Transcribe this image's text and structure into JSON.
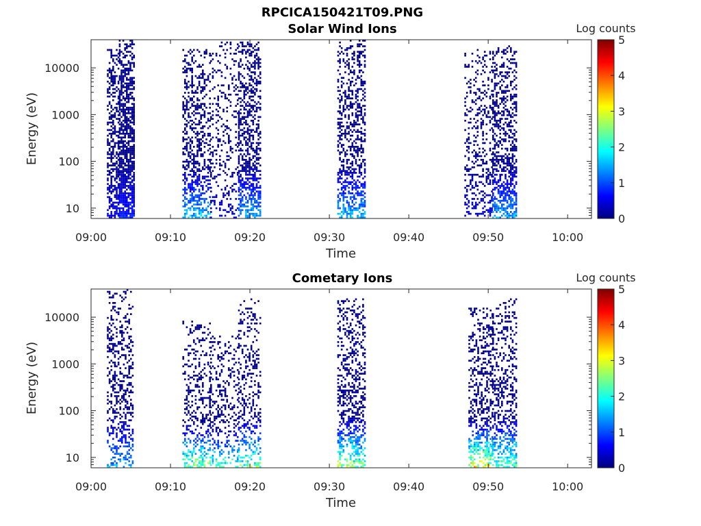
{
  "figure": {
    "title": "RPCICA150421T09.PNG"
  },
  "colors": {
    "background": "#ffffff",
    "axis": "#262626",
    "colormap": [
      "#00007f",
      "#0000ff",
      "#007fff",
      "#00ffff",
      "#7fff7f",
      "#ffff00",
      "#ff7f00",
      "#ff0000",
      "#7f0000"
    ]
  },
  "chart_data": [
    {
      "type": "heatmap",
      "title": "Solar Wind Ions",
      "xlabel": "Time",
      "ylabel": "Energy (eV)",
      "xticks": [
        "09:00",
        "09:10",
        "09:20",
        "09:30",
        "09:40",
        "09:50",
        "10:00"
      ],
      "xlim_minutes": [
        0,
        63
      ],
      "yticks": [
        "10",
        "100",
        "1000",
        "10000"
      ],
      "ylim_eV": [
        6,
        40000
      ],
      "yscale": "log",
      "colorbar": {
        "label": "Log counts",
        "ticks": [
          "0",
          "1",
          "2",
          "3",
          "4",
          "5"
        ],
        "range": [
          0,
          5
        ]
      },
      "events": [
        {
          "start_min": 2.0,
          "end_min": 3.5,
          "emax_eV": 25000,
          "peak_log_counts": 0.6,
          "density": 0.6
        },
        {
          "start_min": 3.5,
          "end_min": 5.3,
          "emax_eV": 40000,
          "peak_log_counts": 0.9,
          "density": 0.9
        },
        {
          "start_min": 11.5,
          "end_min": 15.0,
          "emax_eV": 25000,
          "peak_log_counts": 2.0,
          "density": 0.5
        },
        {
          "start_min": 15.0,
          "end_min": 18.5,
          "emax_eV": 35000,
          "peak_log_counts": 0.5,
          "density": 0.25
        },
        {
          "start_min": 18.5,
          "end_min": 21.2,
          "emax_eV": 35000,
          "peak_log_counts": 1.8,
          "density": 0.6
        },
        {
          "start_min": 31.0,
          "end_min": 34.5,
          "emax_eV": 40000,
          "peak_log_counts": 1.9,
          "density": 0.55
        },
        {
          "start_min": 47.0,
          "end_min": 50.5,
          "emax_eV": 25000,
          "peak_log_counts": 0.5,
          "density": 0.3
        },
        {
          "start_min": 50.5,
          "end_min": 53.5,
          "emax_eV": 30000,
          "peak_log_counts": 1.8,
          "density": 0.6
        }
      ]
    },
    {
      "type": "heatmap",
      "title": "Cometary Ions",
      "xlabel": "Time",
      "ylabel": "Energy (eV)",
      "xticks": [
        "09:00",
        "09:10",
        "09:20",
        "09:30",
        "09:40",
        "09:50",
        "10:00"
      ],
      "xlim_minutes": [
        0,
        63
      ],
      "yticks": [
        "10",
        "100",
        "1000",
        "10000"
      ],
      "ylim_eV": [
        6,
        40000
      ],
      "yscale": "log",
      "colorbar": {
        "label": "Log counts",
        "ticks": [
          "0",
          "1",
          "2",
          "3",
          "4",
          "5"
        ],
        "range": [
          0,
          5
        ]
      },
      "events": [
        {
          "start_min": 2.0,
          "end_min": 5.3,
          "emax_eV": 40000,
          "peak_log_counts": 1.8,
          "density": 0.4
        },
        {
          "start_min": 11.5,
          "end_min": 15.0,
          "emax_eV": 8000,
          "peak_log_counts": 3.2,
          "density": 0.4
        },
        {
          "start_min": 15.0,
          "end_min": 18.5,
          "emax_eV": 4000,
          "peak_log_counts": 2.8,
          "density": 0.35
        },
        {
          "start_min": 18.5,
          "end_min": 21.2,
          "emax_eV": 25000,
          "peak_log_counts": 3.0,
          "density": 0.35
        },
        {
          "start_min": 31.0,
          "end_min": 34.5,
          "emax_eV": 25000,
          "peak_log_counts": 3.3,
          "density": 0.5
        },
        {
          "start_min": 47.5,
          "end_min": 50.5,
          "emax_eV": 15000,
          "peak_log_counts": 3.8,
          "density": 0.5
        },
        {
          "start_min": 50.5,
          "end_min": 53.5,
          "emax_eV": 25000,
          "peak_log_counts": 3.0,
          "density": 0.45
        }
      ]
    }
  ]
}
